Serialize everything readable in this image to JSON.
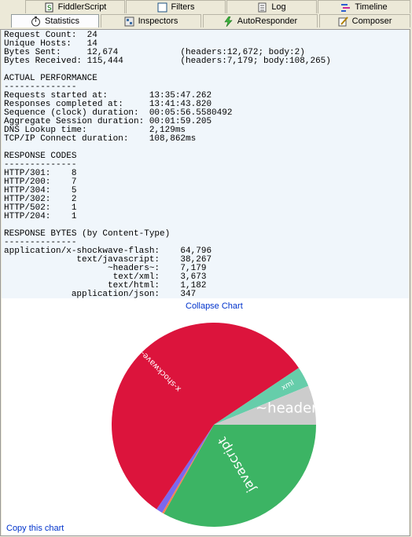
{
  "tabs_row1": [
    {
      "label": "FiddlerScript",
      "icon": "script-icon"
    },
    {
      "label": "Filters",
      "icon": "checkbox-icon"
    },
    {
      "label": "Log",
      "icon": "log-icon"
    },
    {
      "label": "Timeline",
      "icon": "timeline-icon"
    }
  ],
  "tabs_row2": [
    {
      "label": "Statistics",
      "icon": "stopwatch-icon",
      "active": true
    },
    {
      "label": "Inspectors",
      "icon": "inspectors-icon"
    },
    {
      "label": "AutoResponder",
      "icon": "lightning-icon"
    },
    {
      "label": "Composer",
      "icon": "composer-icon"
    }
  ],
  "summary": [
    {
      "label": "Request Count:",
      "value": "24",
      "detail": ""
    },
    {
      "label": "Unique Hosts:",
      "value": "14",
      "detail": ""
    },
    {
      "label": "Bytes Sent:",
      "value": "12,674",
      "detail": "(headers:12,672; body:2)"
    },
    {
      "label": "Bytes Received:",
      "value": "115,444",
      "detail": "(headers:7,179; body:108,265)"
    }
  ],
  "performance": {
    "heading": "ACTUAL PERFORMANCE",
    "underline": "--------------",
    "rows": [
      {
        "label": "Requests started at:",
        "value": "13:35:47.262"
      },
      {
        "label": "Responses completed at:",
        "value": "13:41:43.820"
      },
      {
        "label": "Sequence (clock) duration:",
        "value": "00:05:56.5580492"
      },
      {
        "label": "Aggregate Session duration:",
        "value": "00:01:59.205"
      },
      {
        "label": "DNS Lookup time:",
        "value": "2,129ms"
      },
      {
        "label": "TCP/IP Connect duration:",
        "value": "108,862ms"
      }
    ]
  },
  "response_codes": {
    "heading": "RESPONSE CODES",
    "underline": "--------------",
    "rows": [
      {
        "code": "HTTP/301:",
        "count": "8"
      },
      {
        "code": "HTTP/200:",
        "count": "7"
      },
      {
        "code": "HTTP/304:",
        "count": "5"
      },
      {
        "code": "HTTP/302:",
        "count": "2"
      },
      {
        "code": "HTTP/502:",
        "count": "1"
      },
      {
        "code": "HTTP/204:",
        "count": "1"
      }
    ]
  },
  "response_bytes": {
    "heading": "RESPONSE BYTES (by Content-Type)",
    "underline": "--------------",
    "rows": [
      {
        "type": "application/x-shockwave-flash:",
        "bytes": "64,796"
      },
      {
        "type": "text/javascript:",
        "bytes": "38,267"
      },
      {
        "type": "~headers~:",
        "bytes": "7,179"
      },
      {
        "type": "text/xml:",
        "bytes": "3,673"
      },
      {
        "type": "text/html:",
        "bytes": "1,182"
      },
      {
        "type": "application/json:",
        "bytes": "347"
      }
    ]
  },
  "links": {
    "collapse": "Collapse Chart",
    "copy": "Copy this chart"
  },
  "chart_data": {
    "type": "pie",
    "categories": [
      "x-shockwave-flash",
      "javascript",
      "~headers~",
      "xml",
      "html",
      "json"
    ],
    "values": [
      64796,
      38267,
      7179,
      3673,
      1182,
      347
    ],
    "slice_labels": [
      "x-shockwave-flash",
      "javascript",
      "~headers~",
      "xml",
      "",
      ""
    ],
    "colors": [
      "#dc143c",
      "#3cb464",
      "#cccccc",
      "#66cdaa",
      "#7b68ee",
      "#ff7f50"
    ]
  }
}
